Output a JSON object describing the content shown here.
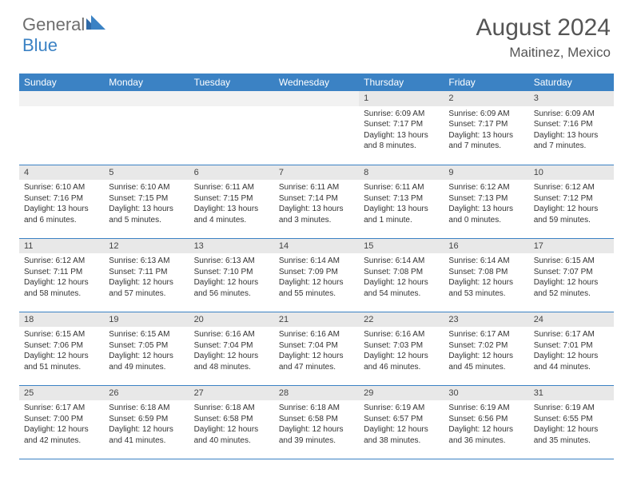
{
  "brand": {
    "general": "General",
    "blue": "Blue"
  },
  "title": "August 2024",
  "location": "Maitinez, Mexico",
  "colors": {
    "header_bg": "#3b82c4",
    "header_text": "#ffffff",
    "daynum_bg": "#e8e8e8",
    "border": "#3b82c4",
    "title_color": "#555555",
    "body_text": "#333333"
  },
  "typography": {
    "month_title_fontsize": 30,
    "location_fontsize": 17,
    "header_fontsize": 12,
    "cell_fontsize": 10
  },
  "dayHeaders": [
    "Sunday",
    "Monday",
    "Tuesday",
    "Wednesday",
    "Thursday",
    "Friday",
    "Saturday"
  ],
  "weeks": [
    [
      null,
      null,
      null,
      null,
      {
        "n": "1",
        "sr": "Sunrise: 6:09 AM",
        "ss": "Sunset: 7:17 PM",
        "dl": "Daylight: 13 hours and 8 minutes."
      },
      {
        "n": "2",
        "sr": "Sunrise: 6:09 AM",
        "ss": "Sunset: 7:17 PM",
        "dl": "Daylight: 13 hours and 7 minutes."
      },
      {
        "n": "3",
        "sr": "Sunrise: 6:09 AM",
        "ss": "Sunset: 7:16 PM",
        "dl": "Daylight: 13 hours and 7 minutes."
      }
    ],
    [
      {
        "n": "4",
        "sr": "Sunrise: 6:10 AM",
        "ss": "Sunset: 7:16 PM",
        "dl": "Daylight: 13 hours and 6 minutes."
      },
      {
        "n": "5",
        "sr": "Sunrise: 6:10 AM",
        "ss": "Sunset: 7:15 PM",
        "dl": "Daylight: 13 hours and 5 minutes."
      },
      {
        "n": "6",
        "sr": "Sunrise: 6:11 AM",
        "ss": "Sunset: 7:15 PM",
        "dl": "Daylight: 13 hours and 4 minutes."
      },
      {
        "n": "7",
        "sr": "Sunrise: 6:11 AM",
        "ss": "Sunset: 7:14 PM",
        "dl": "Daylight: 13 hours and 3 minutes."
      },
      {
        "n": "8",
        "sr": "Sunrise: 6:11 AM",
        "ss": "Sunset: 7:13 PM",
        "dl": "Daylight: 13 hours and 1 minute."
      },
      {
        "n": "9",
        "sr": "Sunrise: 6:12 AM",
        "ss": "Sunset: 7:13 PM",
        "dl": "Daylight: 13 hours and 0 minutes."
      },
      {
        "n": "10",
        "sr": "Sunrise: 6:12 AM",
        "ss": "Sunset: 7:12 PM",
        "dl": "Daylight: 12 hours and 59 minutes."
      }
    ],
    [
      {
        "n": "11",
        "sr": "Sunrise: 6:12 AM",
        "ss": "Sunset: 7:11 PM",
        "dl": "Daylight: 12 hours and 58 minutes."
      },
      {
        "n": "12",
        "sr": "Sunrise: 6:13 AM",
        "ss": "Sunset: 7:11 PM",
        "dl": "Daylight: 12 hours and 57 minutes."
      },
      {
        "n": "13",
        "sr": "Sunrise: 6:13 AM",
        "ss": "Sunset: 7:10 PM",
        "dl": "Daylight: 12 hours and 56 minutes."
      },
      {
        "n": "14",
        "sr": "Sunrise: 6:14 AM",
        "ss": "Sunset: 7:09 PM",
        "dl": "Daylight: 12 hours and 55 minutes."
      },
      {
        "n": "15",
        "sr": "Sunrise: 6:14 AM",
        "ss": "Sunset: 7:08 PM",
        "dl": "Daylight: 12 hours and 54 minutes."
      },
      {
        "n": "16",
        "sr": "Sunrise: 6:14 AM",
        "ss": "Sunset: 7:08 PM",
        "dl": "Daylight: 12 hours and 53 minutes."
      },
      {
        "n": "17",
        "sr": "Sunrise: 6:15 AM",
        "ss": "Sunset: 7:07 PM",
        "dl": "Daylight: 12 hours and 52 minutes."
      }
    ],
    [
      {
        "n": "18",
        "sr": "Sunrise: 6:15 AM",
        "ss": "Sunset: 7:06 PM",
        "dl": "Daylight: 12 hours and 51 minutes."
      },
      {
        "n": "19",
        "sr": "Sunrise: 6:15 AM",
        "ss": "Sunset: 7:05 PM",
        "dl": "Daylight: 12 hours and 49 minutes."
      },
      {
        "n": "20",
        "sr": "Sunrise: 6:16 AM",
        "ss": "Sunset: 7:04 PM",
        "dl": "Daylight: 12 hours and 48 minutes."
      },
      {
        "n": "21",
        "sr": "Sunrise: 6:16 AM",
        "ss": "Sunset: 7:04 PM",
        "dl": "Daylight: 12 hours and 47 minutes."
      },
      {
        "n": "22",
        "sr": "Sunrise: 6:16 AM",
        "ss": "Sunset: 7:03 PM",
        "dl": "Daylight: 12 hours and 46 minutes."
      },
      {
        "n": "23",
        "sr": "Sunrise: 6:17 AM",
        "ss": "Sunset: 7:02 PM",
        "dl": "Daylight: 12 hours and 45 minutes."
      },
      {
        "n": "24",
        "sr": "Sunrise: 6:17 AM",
        "ss": "Sunset: 7:01 PM",
        "dl": "Daylight: 12 hours and 44 minutes."
      }
    ],
    [
      {
        "n": "25",
        "sr": "Sunrise: 6:17 AM",
        "ss": "Sunset: 7:00 PM",
        "dl": "Daylight: 12 hours and 42 minutes."
      },
      {
        "n": "26",
        "sr": "Sunrise: 6:18 AM",
        "ss": "Sunset: 6:59 PM",
        "dl": "Daylight: 12 hours and 41 minutes."
      },
      {
        "n": "27",
        "sr": "Sunrise: 6:18 AM",
        "ss": "Sunset: 6:58 PM",
        "dl": "Daylight: 12 hours and 40 minutes."
      },
      {
        "n": "28",
        "sr": "Sunrise: 6:18 AM",
        "ss": "Sunset: 6:58 PM",
        "dl": "Daylight: 12 hours and 39 minutes."
      },
      {
        "n": "29",
        "sr": "Sunrise: 6:19 AM",
        "ss": "Sunset: 6:57 PM",
        "dl": "Daylight: 12 hours and 38 minutes."
      },
      {
        "n": "30",
        "sr": "Sunrise: 6:19 AM",
        "ss": "Sunset: 6:56 PM",
        "dl": "Daylight: 12 hours and 36 minutes."
      },
      {
        "n": "31",
        "sr": "Sunrise: 6:19 AM",
        "ss": "Sunset: 6:55 PM",
        "dl": "Daylight: 12 hours and 35 minutes."
      }
    ]
  ]
}
